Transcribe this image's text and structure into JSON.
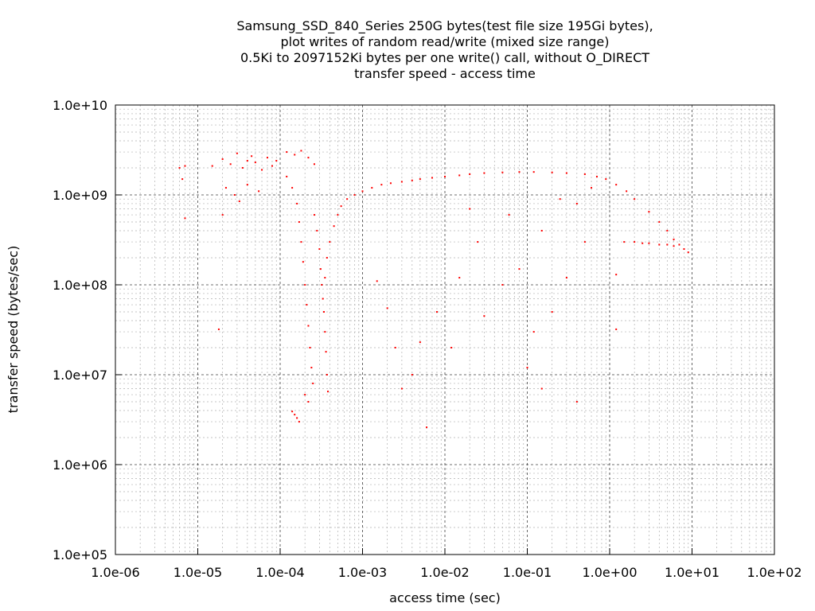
{
  "chart_data": {
    "type": "scatter",
    "title_lines": [
      "Samsung_SSD_840_Series 250G bytes(test file size 195Gi bytes),",
      "plot writes of random read/write (mixed size range)",
      "0.5Ki to 2097152Ki bytes per one write() call, without O_DIRECT",
      "transfer speed - access time"
    ],
    "xlabel": "access time (sec)",
    "ylabel": "transfer speed (bytes/sec)",
    "x_scale": "log",
    "y_scale": "log",
    "xlim": [
      1e-06,
      100
    ],
    "ylim": [
      100000.0,
      10000000000.0
    ],
    "x_ticks": [
      {
        "value": 1e-06,
        "label": "1.0e-06"
      },
      {
        "value": 1e-05,
        "label": "1.0e-05"
      },
      {
        "value": 0.0001,
        "label": "1.0e-04"
      },
      {
        "value": 0.001,
        "label": "1.0e-03"
      },
      {
        "value": 0.01,
        "label": "1.0e-02"
      },
      {
        "value": 0.1,
        "label": "1.0e-01"
      },
      {
        "value": 1,
        "label": "1.0e+00"
      },
      {
        "value": 10,
        "label": "1.0e+01"
      },
      {
        "value": 100,
        "label": "1.0e+02"
      }
    ],
    "y_ticks": [
      {
        "value": 100000.0,
        "label": "1.0e+05"
      },
      {
        "value": 1000000.0,
        "label": "1.0e+06"
      },
      {
        "value": 10000000.0,
        "label": "1.0e+07"
      },
      {
        "value": 100000000.0,
        "label": "1.0e+08"
      },
      {
        "value": 1000000000.0,
        "label": "1.0e+09"
      },
      {
        "value": 10000000000.0,
        "label": "1.0e+10"
      }
    ],
    "grid": true,
    "legend": "none",
    "point_color": "#ff0000",
    "series": [
      {
        "points": [
          [
            6e-06,
            2000000000.0
          ],
          [
            7e-06,
            2100000000.0
          ],
          [
            6.5e-06,
            1500000000.0
          ],
          [
            7e-06,
            550000000.0
          ],
          [
            1.8e-05,
            32000000.0
          ],
          [
            2e-05,
            600000000.0
          ],
          [
            1.5e-05,
            2100000000.0
          ],
          [
            2e-05,
            2500000000.0
          ],
          [
            2.5e-05,
            2200000000.0
          ],
          [
            3e-05,
            2900000000.0
          ],
          [
            3.5e-05,
            2000000000.0
          ],
          [
            4e-05,
            2400000000.0
          ],
          [
            4.5e-05,
            2700000000.0
          ],
          [
            5e-05,
            2300000000.0
          ],
          [
            6e-05,
            1900000000.0
          ],
          [
            7e-05,
            2600000000.0
          ],
          [
            8e-05,
            2100000000.0
          ],
          [
            9e-05,
            2400000000.0
          ],
          [
            2.2e-05,
            1200000000.0
          ],
          [
            2.8e-05,
            1000000000.0
          ],
          [
            3.2e-05,
            850000000.0
          ],
          [
            4e-05,
            1300000000.0
          ],
          [
            5.5e-05,
            1100000000.0
          ],
          [
            0.00012,
            3000000000.0
          ],
          [
            0.00015,
            2800000000.0
          ],
          [
            0.00018,
            3100000000.0
          ],
          [
            0.00022,
            2600000000.0
          ],
          [
            0.00026,
            2200000000.0
          ],
          [
            0.00012,
            1600000000.0
          ],
          [
            0.00014,
            1200000000.0
          ],
          [
            0.00016,
            800000000.0
          ],
          [
            0.00017,
            500000000.0
          ],
          [
            0.00018,
            300000000.0
          ],
          [
            0.00019,
            180000000.0
          ],
          [
            0.0002,
            100000000.0
          ],
          [
            0.00021,
            60000000.0
          ],
          [
            0.00022,
            35000000.0
          ],
          [
            0.00023,
            20000000.0
          ],
          [
            0.00024,
            12000000.0
          ],
          [
            0.00025,
            8000000.0
          ],
          [
            0.00014,
            3900000.0
          ],
          [
            0.00015,
            3600000.0
          ],
          [
            0.00016,
            3300000.0
          ],
          [
            0.00017,
            3000000.0
          ],
          [
            0.0002,
            6000000.0
          ],
          [
            0.00022,
            5000000.0
          ],
          [
            0.00026,
            600000000.0
          ],
          [
            0.00028,
            400000000.0
          ],
          [
            0.0003,
            250000000.0
          ],
          [
            0.00031,
            150000000.0
          ],
          [
            0.00032,
            100000000.0
          ],
          [
            0.00033,
            70000000.0
          ],
          [
            0.00034,
            50000000.0
          ],
          [
            0.00035,
            30000000.0
          ],
          [
            0.00036,
            18000000.0
          ],
          [
            0.00037,
            10000000.0
          ],
          [
            0.00038,
            6500000.0
          ],
          [
            0.00035,
            120000000.0
          ],
          [
            0.00037,
            200000000.0
          ],
          [
            0.0004,
            300000000.0
          ],
          [
            0.00045,
            450000000.0
          ],
          [
            0.0005,
            600000000.0
          ],
          [
            0.00055,
            750000000.0
          ],
          [
            0.00065,
            900000000.0
          ],
          [
            0.0008,
            1000000000.0
          ],
          [
            0.001,
            1100000000.0
          ],
          [
            0.0013,
            1200000000.0
          ],
          [
            0.0017,
            1300000000.0
          ],
          [
            0.0022,
            1350000000.0
          ],
          [
            0.003,
            1400000000.0
          ],
          [
            0.004,
            1450000000.0
          ],
          [
            0.005,
            1500000000.0
          ],
          [
            0.007,
            1550000000.0
          ],
          [
            0.01,
            1600000000.0
          ],
          [
            0.015,
            1650000000.0
          ],
          [
            0.02,
            1700000000.0
          ],
          [
            0.03,
            1750000000.0
          ],
          [
            0.05,
            1780000000.0
          ],
          [
            0.08,
            1800000000.0
          ],
          [
            0.12,
            1800000000.0
          ],
          [
            0.2,
            1780000000.0
          ],
          [
            0.3,
            1750000000.0
          ],
          [
            0.5,
            1700000000.0
          ],
          [
            0.7,
            1600000000.0
          ],
          [
            0.9,
            1500000000.0
          ],
          [
            1.2,
            1300000000.0
          ],
          [
            1.6,
            1100000000.0
          ],
          [
            2.0,
            900000000.0
          ],
          [
            3.0,
            650000000.0
          ],
          [
            4.0,
            500000000.0
          ],
          [
            5.0,
            400000000.0
          ],
          [
            6.0,
            320000000.0
          ],
          [
            7.0,
            280000000.0
          ],
          [
            8.0,
            250000000.0
          ],
          [
            9.0,
            230000000.0
          ],
          [
            1.5,
            300000000.0
          ],
          [
            2.0,
            300000000.0
          ],
          [
            2.5,
            290000000.0
          ],
          [
            3.0,
            290000000.0
          ],
          [
            4.0,
            280000000.0
          ],
          [
            5.0,
            280000000.0
          ],
          [
            6.0,
            270000000.0
          ],
          [
            1.2,
            130000000.0
          ],
          [
            1.2,
            32000000.0
          ],
          [
            0.0015,
            110000000.0
          ],
          [
            0.002,
            55000000.0
          ],
          [
            0.0025,
            20000000.0
          ],
          [
            0.003,
            7000000.0
          ],
          [
            0.004,
            10000000.0
          ],
          [
            0.005,
            23000000.0
          ],
          [
            0.006,
            2600000.0
          ],
          [
            0.008,
            50000000.0
          ],
          [
            0.012,
            20000000.0
          ],
          [
            0.015,
            120000000.0
          ],
          [
            0.025,
            300000000.0
          ],
          [
            0.03,
            45000000.0
          ],
          [
            0.05,
            100000000.0
          ],
          [
            0.08,
            150000000.0
          ],
          [
            0.1,
            12000000.0
          ],
          [
            0.12,
            30000000.0
          ],
          [
            0.15,
            7000000.0
          ],
          [
            0.2,
            50000000.0
          ],
          [
            0.3,
            120000000.0
          ],
          [
            0.4,
            5000000.0
          ],
          [
            0.5,
            300000000.0
          ],
          [
            0.02,
            700000000.0
          ],
          [
            0.06,
            600000000.0
          ],
          [
            0.15,
            400000000.0
          ],
          [
            0.25,
            900000000.0
          ],
          [
            0.4,
            800000000.0
          ],
          [
            0.6,
            1200000000.0
          ]
        ]
      }
    ]
  }
}
